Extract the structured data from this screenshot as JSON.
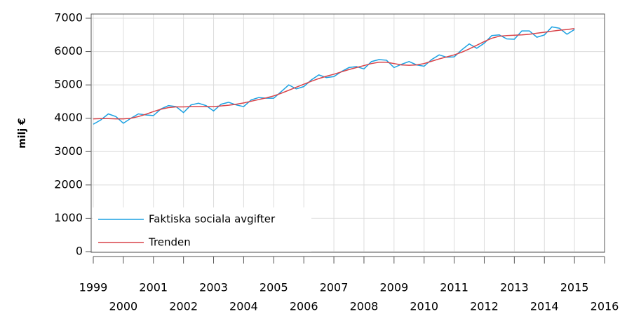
{
  "chart_data": {
    "type": "line",
    "ylabel": "milj €",
    "x": [
      1999,
      1999.25,
      1999.5,
      1999.75,
      2000,
      2000.25,
      2000.5,
      2000.75,
      2001,
      2001.25,
      2001.5,
      2001.75,
      2002,
      2002.25,
      2002.5,
      2002.75,
      2003,
      2003.25,
      2003.5,
      2003.75,
      2004,
      2004.25,
      2004.5,
      2004.75,
      2005,
      2005.25,
      2005.5,
      2005.75,
      2006,
      2006.25,
      2006.5,
      2006.75,
      2007,
      2007.25,
      2007.5,
      2007.75,
      2008,
      2008.25,
      2008.5,
      2008.75,
      2009,
      2009.25,
      2009.5,
      2009.75,
      2010,
      2010.25,
      2010.5,
      2010.75,
      2011,
      2011.25,
      2011.5,
      2011.75,
      2012,
      2012.25,
      2012.5,
      2012.75,
      2013,
      2013.25,
      2013.5,
      2013.75,
      2014,
      2014.25,
      2014.5,
      2014.75,
      2015
    ],
    "series": [
      {
        "name": "Faktiska sociala avgifter",
        "color": "#1ba1e2",
        "values": [
          3820,
          3950,
          4130,
          4050,
          3850,
          4000,
          4130,
          4100,
          4080,
          4280,
          4380,
          4350,
          4170,
          4400,
          4450,
          4380,
          4220,
          4420,
          4480,
          4400,
          4350,
          4550,
          4620,
          4600,
          4600,
          4800,
          5000,
          4880,
          4950,
          5150,
          5300,
          5220,
          5250,
          5400,
          5520,
          5550,
          5480,
          5700,
          5760,
          5740,
          5520,
          5620,
          5700,
          5600,
          5560,
          5760,
          5900,
          5830,
          5840,
          6050,
          6230,
          6100,
          6250,
          6480,
          6500,
          6380,
          6370,
          6620,
          6620,
          6430,
          6500,
          6740,
          6700,
          6520,
          6660
        ]
      },
      {
        "name": "Trenden",
        "color": "#d9444a",
        "values": [
          3980,
          3990,
          3990,
          3980,
          3980,
          4000,
          4050,
          4120,
          4200,
          4270,
          4320,
          4340,
          4340,
          4350,
          4350,
          4350,
          4350,
          4370,
          4390,
          4420,
          4460,
          4510,
          4560,
          4610,
          4670,
          4750,
          4840,
          4930,
          5020,
          5110,
          5190,
          5260,
          5320,
          5390,
          5460,
          5520,
          5580,
          5640,
          5680,
          5680,
          5640,
          5600,
          5590,
          5600,
          5640,
          5710,
          5780,
          5840,
          5900,
          5980,
          6080,
          6190,
          6300,
          6400,
          6460,
          6480,
          6490,
          6500,
          6520,
          6550,
          6580,
          6610,
          6640,
          6660,
          6690
        ]
      }
    ],
    "xlim": [
      1999,
      2016
    ],
    "xticks": [
      1999,
      2000,
      2001,
      2002,
      2003,
      2004,
      2005,
      2006,
      2007,
      2008,
      2009,
      2010,
      2011,
      2012,
      2013,
      2014,
      2015,
      2016
    ],
    "ylim": [
      0,
      7000
    ],
    "yticks": [
      0,
      1000,
      2000,
      3000,
      4000,
      5000,
      6000,
      7000
    ],
    "grid": true,
    "legend": "lower left"
  }
}
